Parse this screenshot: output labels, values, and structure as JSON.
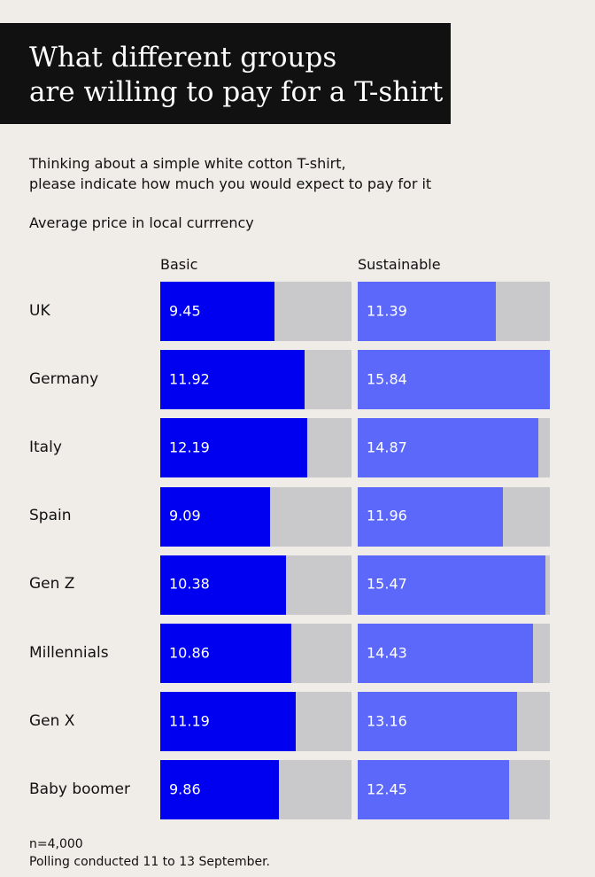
{
  "title": {
    "line1": "What different groups",
    "line2": "are willing to pay for a T-shirt"
  },
  "subtitle": {
    "line1": "Thinking about a simple white cotton T-shirt,",
    "line2": "please indicate how much you would expect to pay for it"
  },
  "unit_note": "Average price in local currrency",
  "footnote": {
    "line1": "n=4,000",
    "line2": "Polling conducted 11 to 13 September."
  },
  "colors": {
    "basic": "#0000f0",
    "sustainable": "#5c68fa",
    "track": "#c9c9cb",
    "background": "#f0ede8",
    "title_background": "#111111"
  },
  "chart_data": {
    "type": "bar",
    "orientation": "horizontal",
    "categories": [
      "UK",
      "Germany",
      "Italy",
      "Spain",
      "Gen Z",
      "Millennials",
      "Gen X",
      "Baby boomer"
    ],
    "series": [
      {
        "name": "Basic",
        "values": [
          9.45,
          11.92,
          12.19,
          9.09,
          10.38,
          10.86,
          11.19,
          9.86
        ],
        "labels": [
          "9.45",
          "11.92",
          "12.19",
          "9.09",
          "10.38",
          "10.86",
          "11.19",
          "9.86"
        ]
      },
      {
        "name": "Sustainable",
        "values": [
          11.39,
          15.84,
          14.87,
          11.96,
          15.47,
          14.43,
          13.16,
          12.45
        ],
        "labels": [
          "11.39",
          "15.84",
          "14.87",
          "11.96",
          "15.47",
          "14.43",
          "13.16",
          "12.45"
        ]
      }
    ],
    "xlim": [
      0,
      15.84
    ],
    "grid": false,
    "legend": "column headers above bars"
  }
}
